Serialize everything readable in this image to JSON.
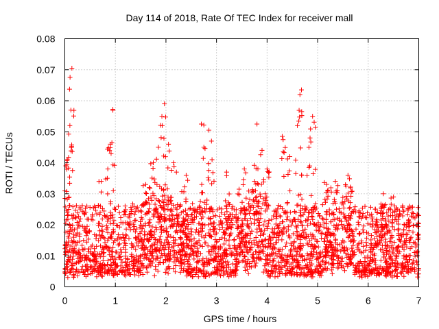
{
  "chart_data": {
    "type": "scatter",
    "title": "Day 114 of 2018, Rate Of TEC Index for receiver mall",
    "xlabel": "GPS time / hours",
    "ylabel": "ROTI / TECUs",
    "xlim": [
      0,
      7
    ],
    "ylim": [
      0,
      0.08
    ],
    "x_ticks": [
      "0",
      "1",
      "2",
      "3",
      "4",
      "5",
      "6",
      "7"
    ],
    "y_ticks": [
      "0",
      "0.01",
      "0.02",
      "0.03",
      "0.04",
      "0.05",
      "0.06",
      "0.07",
      "0.08"
    ],
    "grid": true,
    "marker": "+",
    "series_color": "#ff0000",
    "baseline_range": [
      0.003,
      0.025
    ],
    "notable_points": [
      {
        "x": 0.0,
        "y": 0.031
      },
      {
        "x": 0.02,
        "y": 0.039
      },
      {
        "x": 0.05,
        "y": 0.041
      },
      {
        "x": 0.1,
        "y": 0.052
      },
      {
        "x": 0.12,
        "y": 0.057
      },
      {
        "x": 0.14,
        "y": 0.0705
      },
      {
        "x": 0.72,
        "y": 0.034
      },
      {
        "x": 0.85,
        "y": 0.038
      },
      {
        "x": 0.9,
        "y": 0.046
      },
      {
        "x": 0.95,
        "y": 0.0572
      },
      {
        "x": 1.6,
        "y": 0.033
      },
      {
        "x": 1.75,
        "y": 0.04
      },
      {
        "x": 1.85,
        "y": 0.045
      },
      {
        "x": 1.92,
        "y": 0.055
      },
      {
        "x": 1.97,
        "y": 0.059
      },
      {
        "x": 2.05,
        "y": 0.046
      },
      {
        "x": 2.15,
        "y": 0.04
      },
      {
        "x": 2.4,
        "y": 0.036
      },
      {
        "x": 2.7,
        "y": 0.0525
      },
      {
        "x": 2.75,
        "y": 0.045
      },
      {
        "x": 2.85,
        "y": 0.0505
      },
      {
        "x": 2.9,
        "y": 0.047
      },
      {
        "x": 3.2,
        "y": 0.037
      },
      {
        "x": 3.55,
        "y": 0.038
      },
      {
        "x": 3.75,
        "y": 0.034
      },
      {
        "x": 3.8,
        "y": 0.0525
      },
      {
        "x": 3.9,
        "y": 0.044
      },
      {
        "x": 4.0,
        "y": 0.038
      },
      {
        "x": 4.3,
        "y": 0.0485
      },
      {
        "x": 4.45,
        "y": 0.042
      },
      {
        "x": 4.6,
        "y": 0.052
      },
      {
        "x": 4.65,
        "y": 0.062
      },
      {
        "x": 4.68,
        "y": 0.0635
      },
      {
        "x": 4.85,
        "y": 0.048
      },
      {
        "x": 4.9,
        "y": 0.055
      },
      {
        "x": 5.35,
        "y": 0.034
      },
      {
        "x": 5.6,
        "y": 0.036
      },
      {
        "x": 6.3,
        "y": 0.03
      },
      {
        "x": 6.5,
        "y": 0.029
      },
      {
        "x": 7.0,
        "y": 0.023
      }
    ]
  }
}
